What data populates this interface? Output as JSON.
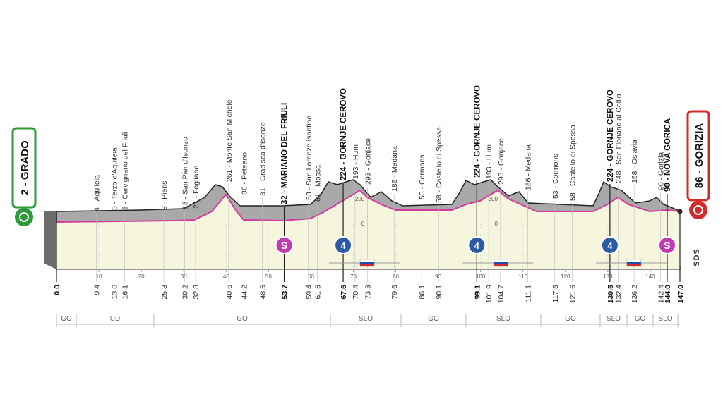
{
  "start": {
    "label": "2 - GRADO"
  },
  "finish": {
    "label": "86 - GORIZIA"
  },
  "waypoints": [
    {
      "km": "0.0",
      "major": true
    },
    {
      "km": "9.4",
      "label": "4 - Aquileia"
    },
    {
      "km": "13.6",
      "label": "5 - Terzo d'Aquileia"
    },
    {
      "km": "16.1",
      "label": "3 - Cervignano del Friuli"
    },
    {
      "km": "25.3",
      "label": "8 - Pieris"
    },
    {
      "km": "30.2",
      "label": "18 - San Pier d'Isonzo"
    },
    {
      "km": "32.8",
      "label": "21 - Fogliano"
    },
    {
      "km": "40.6",
      "label": "261 - Monte San Michele"
    },
    {
      "km": "44.2",
      "label": "36 - Peteano"
    },
    {
      "km": "48.5",
      "label": "31 - Gradisca d'Isonzo"
    },
    {
      "km": "53.7",
      "label": "32 - MARIANO DEL FRIULI",
      "major": true
    },
    {
      "km": "59.4",
      "label": "53 - San Lorenzo Isontino"
    },
    {
      "km": "61.5",
      "label": "61 - Mossa"
    },
    {
      "km": "67.6",
      "label": "224 - GORNJE CEROVO",
      "major": true
    },
    {
      "km": "70.4",
      "label": "193 - Hum"
    },
    {
      "km": "73.3",
      "label": "293 - Gonjace"
    },
    {
      "km": "79.6",
      "label": "186 - Medana"
    },
    {
      "km": "86.1",
      "label": "53 - Cormons"
    },
    {
      "km": "90.1",
      "label": "58 - Castello di Spessa"
    },
    {
      "km": "99.1",
      "label": "224 - GORNJE CEROVO",
      "major": true
    },
    {
      "km": "101.9",
      "label": "193 - Hum"
    },
    {
      "km": "104.7",
      "label": "293 - Gonjace"
    },
    {
      "km": "111.1",
      "label": "186 - Medana"
    },
    {
      "km": "117.5",
      "label": "53 - Cormons"
    },
    {
      "km": "121.6",
      "label": "58 - Castello di Spessa"
    },
    {
      "km": "130.5",
      "label": "224 - GORNJE CEROVO",
      "major": true
    },
    {
      "km": "132.4",
      "label": "248 - San Floriano al Collio"
    },
    {
      "km": "136.2",
      "label": "158 - Oslavia"
    },
    {
      "km": "142.4",
      "label": "90 - Gorizia"
    },
    {
      "km": "144.0",
      "label": "90 - NOVA GORICA",
      "major": true
    },
    {
      "km": "147.0",
      "major": true
    }
  ],
  "axis_ticks": [
    10,
    20,
    30,
    40,
    50,
    60,
    70,
    80,
    90,
    100,
    110,
    120,
    130,
    140
  ],
  "scale_labels": [
    "200",
    "0"
  ],
  "sprints": [
    {
      "km": "53.7",
      "label": "S"
    },
    {
      "km": "144.0",
      "label": "S"
    }
  ],
  "climbs": [
    {
      "km": "67.6",
      "label": "4"
    },
    {
      "km": "99.1",
      "label": "4"
    },
    {
      "km": "130.5",
      "label": "4"
    }
  ],
  "regions": [
    "GO",
    "UD",
    "GO",
    "SLO",
    "GO",
    "SLO",
    "GO",
    "SLO",
    "GO",
    "SLO"
  ],
  "logo": "SDS"
}
